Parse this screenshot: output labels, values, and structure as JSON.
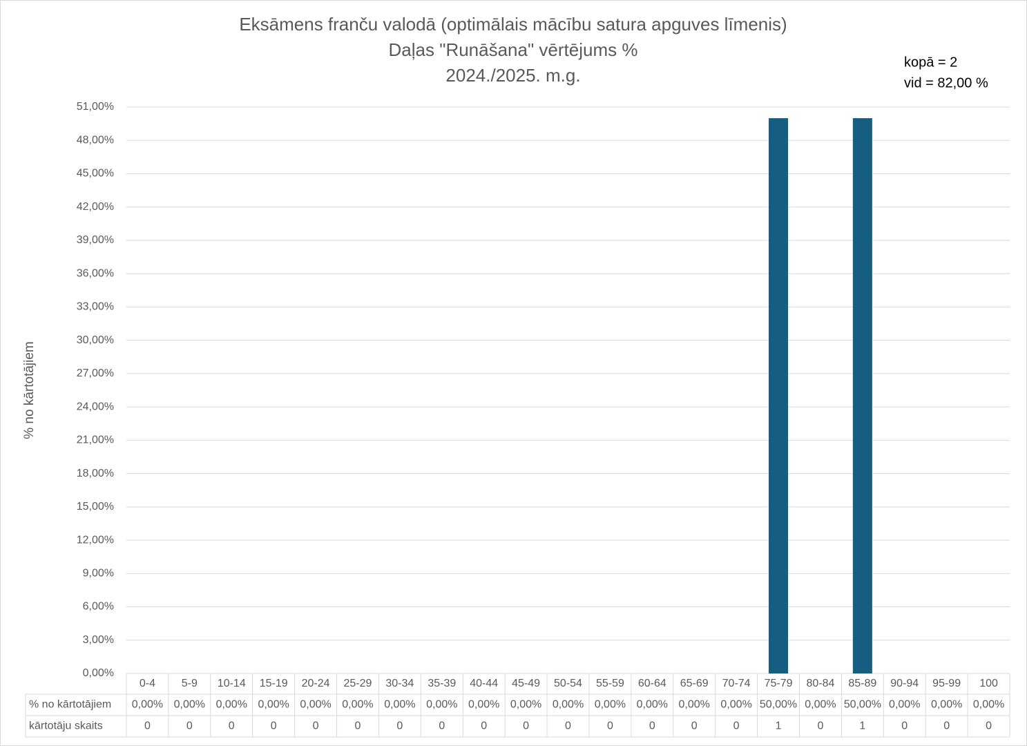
{
  "chart_data": {
    "type": "bar",
    "title": "Eksāmens franču valodā (optimālais mācību satura apguves līmenis)",
    "subtitle": [
      "Daļas \"Runāšana\" vērtējums %",
      "2024./2025. m.g."
    ],
    "annotations": [
      "kopā = 2",
      "vid = 82,00 %"
    ],
    "y_label": "% no kārtotājiem",
    "categories": [
      "0-4",
      "5-9",
      "10-14",
      "15-19",
      "20-24",
      "25-29",
      "30-34",
      "35-39",
      "40-44",
      "45-49",
      "50-54",
      "55-59",
      "60-64",
      "65-69",
      "70-74",
      "75-79",
      "80-84",
      "85-89",
      "90-94",
      "95-99",
      "100"
    ],
    "series": [
      {
        "name": "% no kārtotājiem",
        "color": "#155e82",
        "values": [
          0,
          0,
          0,
          0,
          0,
          0,
          0,
          0,
          0,
          0,
          0,
          0,
          0,
          0,
          0,
          50,
          0,
          50,
          0,
          0,
          0
        ],
        "value_labels": [
          "0,00%",
          "0,00%",
          "0,00%",
          "0,00%",
          "0,00%",
          "0,00%",
          "0,00%",
          "0,00%",
          "0,00%",
          "0,00%",
          "0,00%",
          "0,00%",
          "0,00%",
          "0,00%",
          "0,00%",
          "50,00%",
          "0,00%",
          "50,00%",
          "0,00%",
          "0,00%",
          "0,00%"
        ]
      },
      {
        "name": "kārtotāju skaits",
        "values": [
          0,
          0,
          0,
          0,
          0,
          0,
          0,
          0,
          0,
          0,
          0,
          0,
          0,
          0,
          0,
          1,
          0,
          1,
          0,
          0,
          0
        ]
      }
    ],
    "ylim": [
      0,
      51
    ],
    "yticks": [
      {
        "value": 0,
        "label": "0,00%"
      },
      {
        "value": 3,
        "label": "3,00%"
      },
      {
        "value": 6,
        "label": "6,00%"
      },
      {
        "value": 9,
        "label": "9,00%"
      },
      {
        "value": 12,
        "label": "12,00%"
      },
      {
        "value": 15,
        "label": "15,00%"
      },
      {
        "value": 18,
        "label": "18,00%"
      },
      {
        "value": 21,
        "label": "21,00%"
      },
      {
        "value": 24,
        "label": "24,00%"
      },
      {
        "value": 27,
        "label": "27,00%"
      },
      {
        "value": 30,
        "label": "30,00%"
      },
      {
        "value": 33,
        "label": "33,00%"
      },
      {
        "value": 36,
        "label": "36,00%"
      },
      {
        "value": 39,
        "label": "39,00%"
      },
      {
        "value": 42,
        "label": "42,00%"
      },
      {
        "value": 45,
        "label": "45,00%"
      },
      {
        "value": 48,
        "label": "48,00%"
      },
      {
        "value": 51,
        "label": "51,00%"
      }
    ],
    "grid": true
  }
}
